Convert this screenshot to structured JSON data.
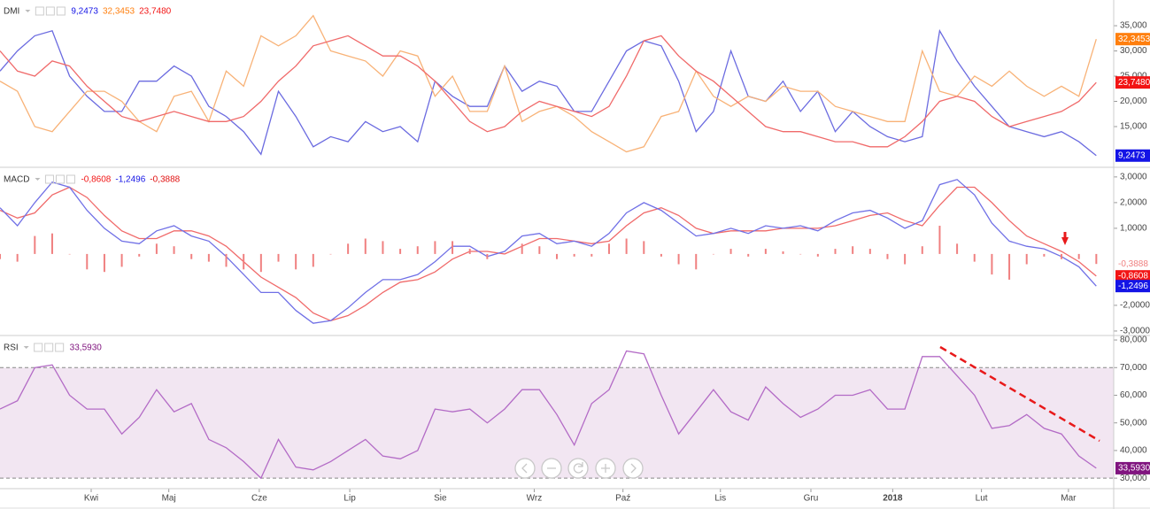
{
  "chart_data": [
    {
      "type": "line",
      "title": "DMI",
      "xlim": [
        0,
        64
      ],
      "ylim": [
        7.1,
        40.1
      ],
      "yticks": [
        {
          "value": 15,
          "label": "15,000"
        },
        {
          "value": 20,
          "label": "20,000"
        },
        {
          "value": 25,
          "label": "25,000"
        },
        {
          "value": 30,
          "label": "30,000"
        },
        {
          "value": 35,
          "label": "35,000"
        }
      ],
      "series": [
        {
          "color": "#6b6be0",
          "box_color": "#1414e6",
          "value_label": "9,2473",
          "values": [
            26,
            30,
            33,
            34,
            25,
            21,
            18,
            18,
            24,
            24,
            27,
            25,
            19,
            17,
            14,
            9.5,
            22,
            17,
            11,
            13,
            12,
            16,
            14,
            15,
            12,
            24,
            21,
            19,
            19,
            27,
            22,
            24,
            23,
            18,
            18,
            24,
            30,
            32,
            31,
            24,
            14,
            18,
            30,
            21,
            20,
            24,
            18,
            22,
            14,
            18,
            15,
            13,
            12,
            13,
            34,
            28,
            23,
            19,
            15,
            14,
            13,
            14,
            12,
            9.2473
          ]
        },
        {
          "color": "#f8b277",
          "box_color": "#ff7f0e",
          "value_label": "32,3453",
          "values": [
            24,
            22,
            15,
            14,
            18,
            22,
            22,
            20,
            16,
            14,
            21,
            22,
            16,
            26,
            23,
            33,
            31,
            33,
            37,
            30,
            29,
            28,
            25,
            30,
            29,
            21,
            25,
            18,
            18,
            27,
            16,
            18,
            19,
            17,
            14,
            12,
            10,
            11,
            17,
            18,
            26,
            21,
            19,
            21,
            20,
            23,
            22,
            22,
            19,
            18,
            17,
            16,
            16,
            30,
            22,
            21,
            25,
            23,
            26,
            23,
            21,
            23,
            21,
            32.3453
          ]
        },
        {
          "color": "#f06a6a",
          "box_color": "#f21414",
          "value_label": "23,7480",
          "values": [
            30,
            26,
            25,
            28,
            27,
            23,
            20,
            17,
            16,
            17,
            18,
            17,
            16,
            16,
            17,
            20,
            24,
            27,
            31,
            32,
            33,
            31,
            29,
            29,
            27,
            24,
            20,
            16,
            14,
            15,
            18,
            20,
            19,
            18,
            17,
            19,
            25,
            32,
            33,
            29,
            26,
            24,
            21,
            18,
            15,
            14,
            14,
            13,
            12,
            12,
            11,
            11,
            13,
            16,
            20,
            21,
            20,
            17,
            15,
            16,
            17,
            18,
            20,
            23.748
          ]
        }
      ]
    },
    {
      "type": "line",
      "title": "MACD",
      "xlim": [
        0,
        64
      ],
      "ylim": [
        -3.14,
        3.34
      ],
      "yticks": [
        {
          "value": 3,
          "label": "3,0000"
        },
        {
          "value": 2,
          "label": "2,0000"
        },
        {
          "value": 1,
          "label": "1,0000"
        },
        {
          "value": -2,
          "label": "-2,0000"
        },
        {
          "value": -3,
          "label": "-3,0000"
        }
      ],
      "series": [
        {
          "color": "#f06a6a",
          "box_color": "#f21414",
          "value_label": "-0,8608",
          "values": [
            1.7,
            1.4,
            1.6,
            2.3,
            2.6,
            2.2,
            1.5,
            0.9,
            0.6,
            0.6,
            0.9,
            0.9,
            0.7,
            0.3,
            -0.3,
            -0.9,
            -1.3,
            -1.7,
            -2.3,
            -2.6,
            -2.4,
            -2.0,
            -1.5,
            -1.1,
            -1.0,
            -0.7,
            -0.2,
            0.1,
            0.1,
            0.0,
            0.3,
            0.6,
            0.6,
            0.5,
            0.4,
            0.5,
            1.1,
            1.6,
            1.8,
            1.5,
            1.0,
            0.8,
            0.9,
            0.9,
            0.9,
            1.0,
            1.0,
            1.0,
            1.1,
            1.3,
            1.5,
            1.6,
            1.3,
            1.1,
            1.9,
            2.6,
            2.6,
            2.0,
            1.3,
            0.7,
            0.4,
            0.1,
            -0.3,
            -0.8608
          ]
        },
        {
          "color": "#7070e6",
          "box_color": "#1414e6",
          "value_label": "-1,2496",
          "values": [
            1.8,
            1.1,
            2.0,
            2.8,
            2.6,
            1.7,
            1.0,
            0.5,
            0.4,
            0.9,
            1.1,
            0.7,
            0.5,
            -0.1,
            -0.8,
            -1.5,
            -1.5,
            -2.2,
            -2.7,
            -2.6,
            -2.1,
            -1.5,
            -1.0,
            -1.0,
            -0.8,
            -0.3,
            0.3,
            0.3,
            -0.1,
            0.1,
            0.7,
            0.8,
            0.4,
            0.5,
            0.3,
            0.8,
            1.6,
            2.0,
            1.7,
            1.2,
            0.7,
            0.8,
            1.0,
            0.8,
            1.1,
            1.0,
            1.1,
            0.9,
            1.3,
            1.6,
            1.7,
            1.4,
            1.0,
            1.3,
            2.7,
            2.9,
            2.3,
            1.2,
            0.5,
            0.3,
            0.2,
            -0.1,
            -0.5,
            -1.2496
          ]
        },
        {
          "type": "bar",
          "color": "#f08080",
          "box_color": "#ffffff",
          "value_label": "-0,3888",
          "values": [
            -0.2,
            -0.3,
            0.7,
            0.8,
            0.0,
            -0.6,
            -0.7,
            -0.5,
            -0.1,
            0.4,
            0.3,
            -0.2,
            -0.3,
            -0.5,
            -0.6,
            -0.7,
            -0.3,
            -0.6,
            -0.5,
            0.0,
            0.4,
            0.6,
            0.5,
            0.2,
            0.3,
            0.5,
            0.5,
            0.2,
            -0.2,
            0.0,
            0.4,
            0.3,
            -0.2,
            -0.1,
            -0.1,
            0.4,
            0.6,
            0.5,
            -0.1,
            -0.4,
            -0.6,
            0.0,
            0.2,
            -0.1,
            0.2,
            0.1,
            0.0,
            -0.1,
            0.2,
            0.3,
            0.2,
            -0.2,
            -0.4,
            0.3,
            1.1,
            0.4,
            -0.3,
            -0.8,
            -1.0,
            -0.4,
            -0.1,
            -0.2,
            -0.2,
            -0.3888
          ]
        }
      ]
    },
    {
      "type": "line",
      "title": "RSI",
      "xlim": [
        0,
        64
      ],
      "ylim": [
        26.2,
        81.3
      ],
      "band": [
        30,
        70
      ],
      "band_color": "#f2e6f2",
      "yticks": [
        {
          "value": 30,
          "label": "30,000"
        },
        {
          "value": 40,
          "label": "40,000"
        },
        {
          "value": 50,
          "label": "50,000"
        },
        {
          "value": 60,
          "label": "60,000"
        },
        {
          "value": 70,
          "label": "70,000"
        },
        {
          "value": 80,
          "label": "80,000"
        }
      ],
      "xticks": [
        {
          "value": 5.24,
          "label": "Kwi"
        },
        {
          "value": 9.7,
          "label": "Maj"
        },
        {
          "value": 14.9,
          "label": "Cze"
        },
        {
          "value": 20.1,
          "label": "Lip"
        },
        {
          "value": 25.3,
          "label": "Sie"
        },
        {
          "value": 30.7,
          "label": "Wrz"
        },
        {
          "value": 35.8,
          "label": "Paź"
        },
        {
          "value": 41.4,
          "label": "Lis"
        },
        {
          "value": 46.6,
          "label": "Gru"
        },
        {
          "value": 51.3,
          "label": "2018"
        },
        {
          "value": 56.4,
          "label": "Lut"
        },
        {
          "value": 61.4,
          "label": "Mar"
        }
      ],
      "series": [
        {
          "color": "#b36bc6",
          "box_color": "#80157f",
          "value_label": "33,5930",
          "values": [
            55,
            58,
            70,
            71,
            60,
            55,
            55,
            46,
            52,
            62,
            54,
            57,
            44,
            41,
            36,
            30,
            44,
            34,
            33,
            36,
            40,
            44,
            38,
            37,
            40,
            55,
            54,
            55,
            50,
            55,
            62,
            62,
            53,
            42,
            57,
            62,
            76,
            75,
            60,
            46,
            54,
            62,
            54,
            51,
            63,
            57,
            52,
            55,
            60,
            60,
            62,
            55,
            55,
            74,
            74,
            67,
            60,
            48,
            49,
            53,
            48,
            46,
            38,
            33.593
          ]
        }
      ]
    }
  ]
}
